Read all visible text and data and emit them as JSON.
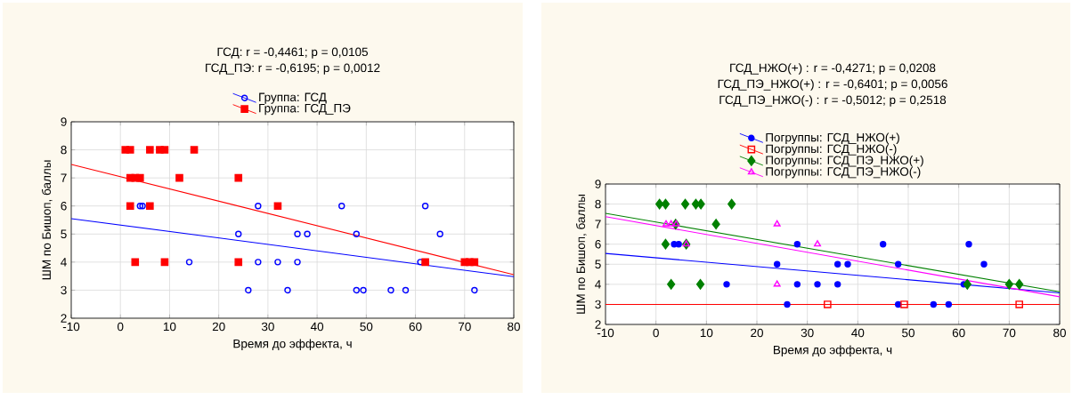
{
  "chart_data": [
    {
      "type": "scatter",
      "xlabel": "Время до эффекта, ч",
      "ylabel": "ШМ по Бишоп, баллы",
      "annotations": [
        "ГСД:   r = -0,4461; p = 0,0105",
        "ГСД_ПЭ:  r = -0,6195; p = 0,0012"
      ],
      "xlim": [
        -10,
        80
      ],
      "ylim": [
        2,
        9
      ],
      "xticks": [
        -10,
        0,
        10,
        20,
        30,
        40,
        50,
        60,
        70,
        80
      ],
      "yticks": [
        2,
        3,
        4,
        5,
        6,
        7,
        8,
        9
      ],
      "grid": true,
      "legend": "top",
      "series": [
        {
          "name": "Группа: ГСД",
          "color": "#0000ff",
          "marker": "circle",
          "x": [
            4,
            4.5,
            28,
            45,
            62,
            24,
            36,
            38,
            48,
            65,
            14,
            28,
            32,
            36,
            61,
            26,
            34,
            48,
            49.4,
            55,
            58,
            72
          ],
          "values": [
            6,
            6,
            6,
            6,
            6,
            5,
            5,
            5,
            5,
            5,
            4,
            4,
            4,
            4,
            4,
            3,
            3,
            3,
            3,
            3,
            3,
            3
          ]
        },
        {
          "name": "Группа: ГСД_ПЭ",
          "color": "#ff0000",
          "marker": "square",
          "x": [
            1,
            2,
            6,
            8,
            9,
            15,
            2,
            3,
            4,
            12,
            24,
            2,
            6,
            32,
            3,
            9,
            24,
            62,
            70,
            71,
            72
          ],
          "values": [
            8,
            8,
            8,
            8,
            8,
            8,
            7,
            7,
            7,
            7,
            7,
            6,
            6,
            6,
            4,
            4,
            4,
            4,
            4,
            4,
            4
          ]
        },
        {
          "type": "line",
          "color": "#0000ff",
          "marker": "none",
          "x": [
            -10,
            80
          ],
          "values": [
            5.55,
            3.48
          ]
        },
        {
          "type": "line",
          "color": "#ff0000",
          "marker": "none",
          "x": [
            -10,
            80
          ],
          "values": [
            7.48,
            3.55
          ]
        }
      ]
    },
    {
      "type": "scatter",
      "xlabel": "Время до эффекта, ч",
      "ylabel": "ШМ по Бишоп, баллы",
      "annotations": [
        "ГСД_НЖО(+) :   r = -0,4271; p = 0,0208",
        "ГСД_ПЭ_НЖО(+)  :   r = -0,6401; p = 0,0056",
        "ГСД_ПЭ_НЖО(-)  :   r = -0,5012; p = 0,2518"
      ],
      "xlim": [
        -10,
        80
      ],
      "ylim": [
        2,
        9
      ],
      "xticks": [
        -10,
        0,
        10,
        20,
        30,
        40,
        50,
        60,
        70,
        80
      ],
      "yticks": [
        2,
        3,
        4,
        5,
        6,
        7,
        8,
        9
      ],
      "grid": true,
      "legend": "top",
      "series": [
        {
          "name": "Погруппы: ГСД_НЖО(+)",
          "color": "#0000ff",
          "marker": "circle",
          "x": [
            3.6,
            4.5,
            28,
            45,
            62,
            24,
            36,
            38,
            48,
            65,
            14,
            28,
            32,
            36,
            61,
            26,
            48,
            55,
            58
          ],
          "values": [
            6,
            6,
            6,
            6,
            6,
            5,
            5,
            5,
            5,
            5,
            4,
            4,
            4,
            4,
            4,
            3,
            3,
            3,
            3
          ]
        },
        {
          "name": "Погруппы: ГСД_НЖО(-)",
          "color": "#ff0000",
          "marker": "square",
          "x": [
            34,
            49.2,
            72
          ],
          "values": [
            3,
            3,
            3
          ]
        },
        {
          "name": "Погруппы: ГСД_ПЭ_НЖО(+)",
          "color": "#008000",
          "marker": "diamond",
          "x": [
            0.7,
            1.9,
            5.8,
            7.9,
            8.9,
            15,
            3.9,
            11.9,
            1.9,
            6,
            3,
            8.8,
            61.7,
            70,
            72
          ],
          "values": [
            8,
            8,
            8,
            8,
            8,
            8,
            7,
            7,
            6,
            6,
            4,
            4,
            4,
            4,
            4
          ]
        },
        {
          "name": "Погруппы: ГСД_ПЭ_НЖО(-)",
          "color": "#ff00ff",
          "marker": "triangle",
          "x": [
            2,
            3,
            4,
            24,
            6,
            32,
            24
          ],
          "values": [
            7,
            7,
            7,
            7,
            6,
            6,
            4
          ]
        },
        {
          "type": "line",
          "color": "#0000ff",
          "marker": "none",
          "x": [
            -10,
            80
          ],
          "values": [
            5.54,
            3.57
          ]
        },
        {
          "type": "line",
          "color": "#ff0000",
          "marker": "none",
          "x": [
            -10,
            80
          ],
          "values": [
            3,
            3
          ]
        },
        {
          "type": "line",
          "color": "#008000",
          "marker": "none",
          "x": [
            -10,
            80
          ],
          "values": [
            7.54,
            3.63
          ]
        },
        {
          "type": "line",
          "color": "#ff00ff",
          "marker": "none",
          "x": [
            -10,
            80
          ],
          "values": [
            7.37,
            3.38
          ]
        }
      ]
    }
  ]
}
